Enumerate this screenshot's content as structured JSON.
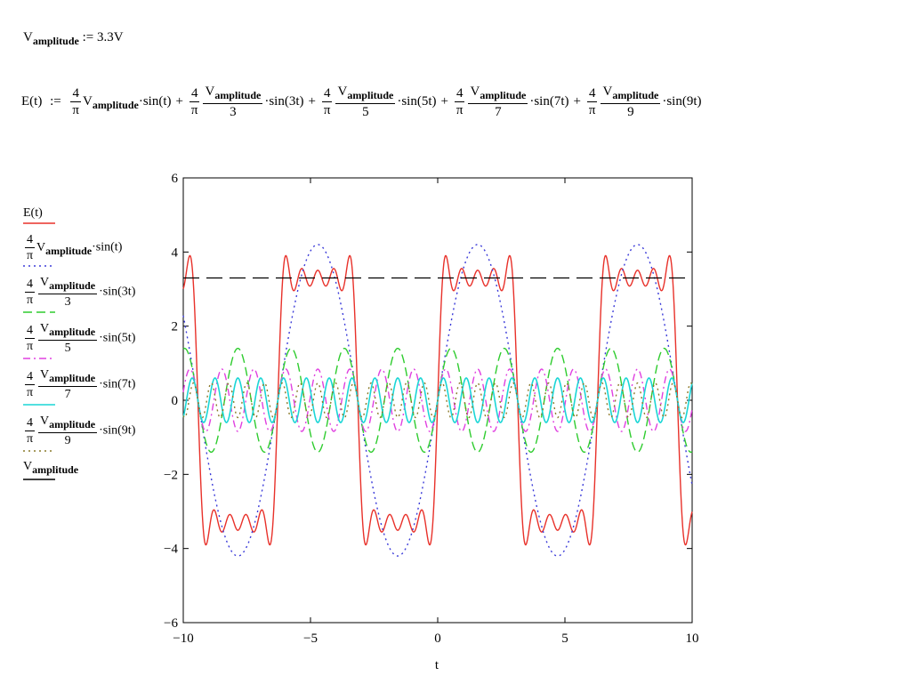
{
  "definition": {
    "lhs": "V",
    "lhs_sub": "amplitude",
    "op": ":=",
    "rhs": "3.3V"
  },
  "equation": {
    "lhs": "E(t)",
    "assign": ":=",
    "plus": "+",
    "four": "4",
    "pi": "π",
    "v": "V",
    "v_sub": "amplitude",
    "dot": "·",
    "terms": [
      {
        "den": "",
        "fn": "sin(t)"
      },
      {
        "den": "3",
        "fn": "sin(3t)"
      },
      {
        "den": "5",
        "fn": "sin(5t)"
      },
      {
        "den": "7",
        "fn": "sin(7t)"
      },
      {
        "den": "9",
        "fn": "sin(9t)"
      }
    ]
  },
  "legend": [
    {
      "type": "plain",
      "label": "E(t)",
      "color": "#e8312a",
      "dash": ""
    },
    {
      "type": "frac1",
      "num": "4",
      "den": "π",
      "v": "V",
      "sub": "amplitude",
      "fn": "·sin(t)",
      "color": "#3b3bd9",
      "dash": "2,4"
    },
    {
      "type": "frac2",
      "num": "4",
      "den": "π",
      "v": "V",
      "sub": "amplitude",
      "n": "3",
      "fn": "·sin(3t)",
      "color": "#2ecc2e",
      "dash": "10,5"
    },
    {
      "type": "frac2",
      "num": "4",
      "den": "π",
      "v": "V",
      "sub": "amplitude",
      "n": "5",
      "fn": "·sin(5t)",
      "color": "#e040e0",
      "dash": "8,4,2,4"
    },
    {
      "type": "frac2",
      "num": "4",
      "den": "π",
      "v": "V",
      "sub": "amplitude",
      "n": "7",
      "fn": "·sin(7t)",
      "color": "#1ad6d6",
      "dash": ""
    },
    {
      "type": "frac2",
      "num": "4",
      "den": "π",
      "v": "V",
      "sub": "amplitude",
      "n": "9",
      "fn": "·sin(9t)",
      "color": "#8a7a2a",
      "dash": "2,4"
    },
    {
      "type": "vamp",
      "v": "V",
      "sub": "amplitude",
      "color": "#000000",
      "dash": ""
    }
  ],
  "chart_data": {
    "type": "line",
    "xlabel": "t",
    "ylabel": "",
    "xlim": [
      -10,
      10
    ],
    "ylim": [
      -6,
      6
    ],
    "xticks": [
      -10,
      -5,
      0,
      5,
      10
    ],
    "yticks": [
      -6,
      -4,
      -2,
      0,
      2,
      4,
      6
    ],
    "xtick_labels": [
      "−10",
      "−5",
      "0",
      "5",
      "10"
    ],
    "ytick_labels": [
      "−6",
      "−4",
      "−2",
      "0",
      "2",
      "4",
      "6"
    ],
    "amplitude": 3.3,
    "series": [
      {
        "name": "E(t)",
        "color": "#e8312a",
        "dash": "",
        "harmonics": [
          1,
          3,
          5,
          7,
          9
        ],
        "width": 1.4
      },
      {
        "name": "4/π·Vamplitude·sin(t)",
        "color": "#3b3bd9",
        "dash": "2,4",
        "harmonics": [
          1
        ],
        "width": 1.4
      },
      {
        "name": "4/π·Vamplitude/3·sin(3t)",
        "color": "#2ecc2e",
        "dash": "10,5",
        "harmonics": [
          3
        ],
        "width": 1.4
      },
      {
        "name": "4/π·Vamplitude/5·sin(5t)",
        "color": "#e040e0",
        "dash": "8,4,2,4",
        "harmonics": [
          5
        ],
        "width": 1.4
      },
      {
        "name": "4/π·Vamplitude/7·sin(7t)",
        "color": "#1ad6d6",
        "dash": "",
        "harmonics": [
          7
        ],
        "width": 1.6
      },
      {
        "name": "4/π·Vamplitude/9·sin(9t)",
        "color": "#8a7a2a",
        "dash": "2,4",
        "harmonics": [
          9
        ],
        "width": 1.4
      },
      {
        "name": "Vamplitude",
        "color": "#000000",
        "dash": "18,8",
        "harmonics": [],
        "constant": 3.3,
        "width": 1.2
      }
    ]
  }
}
